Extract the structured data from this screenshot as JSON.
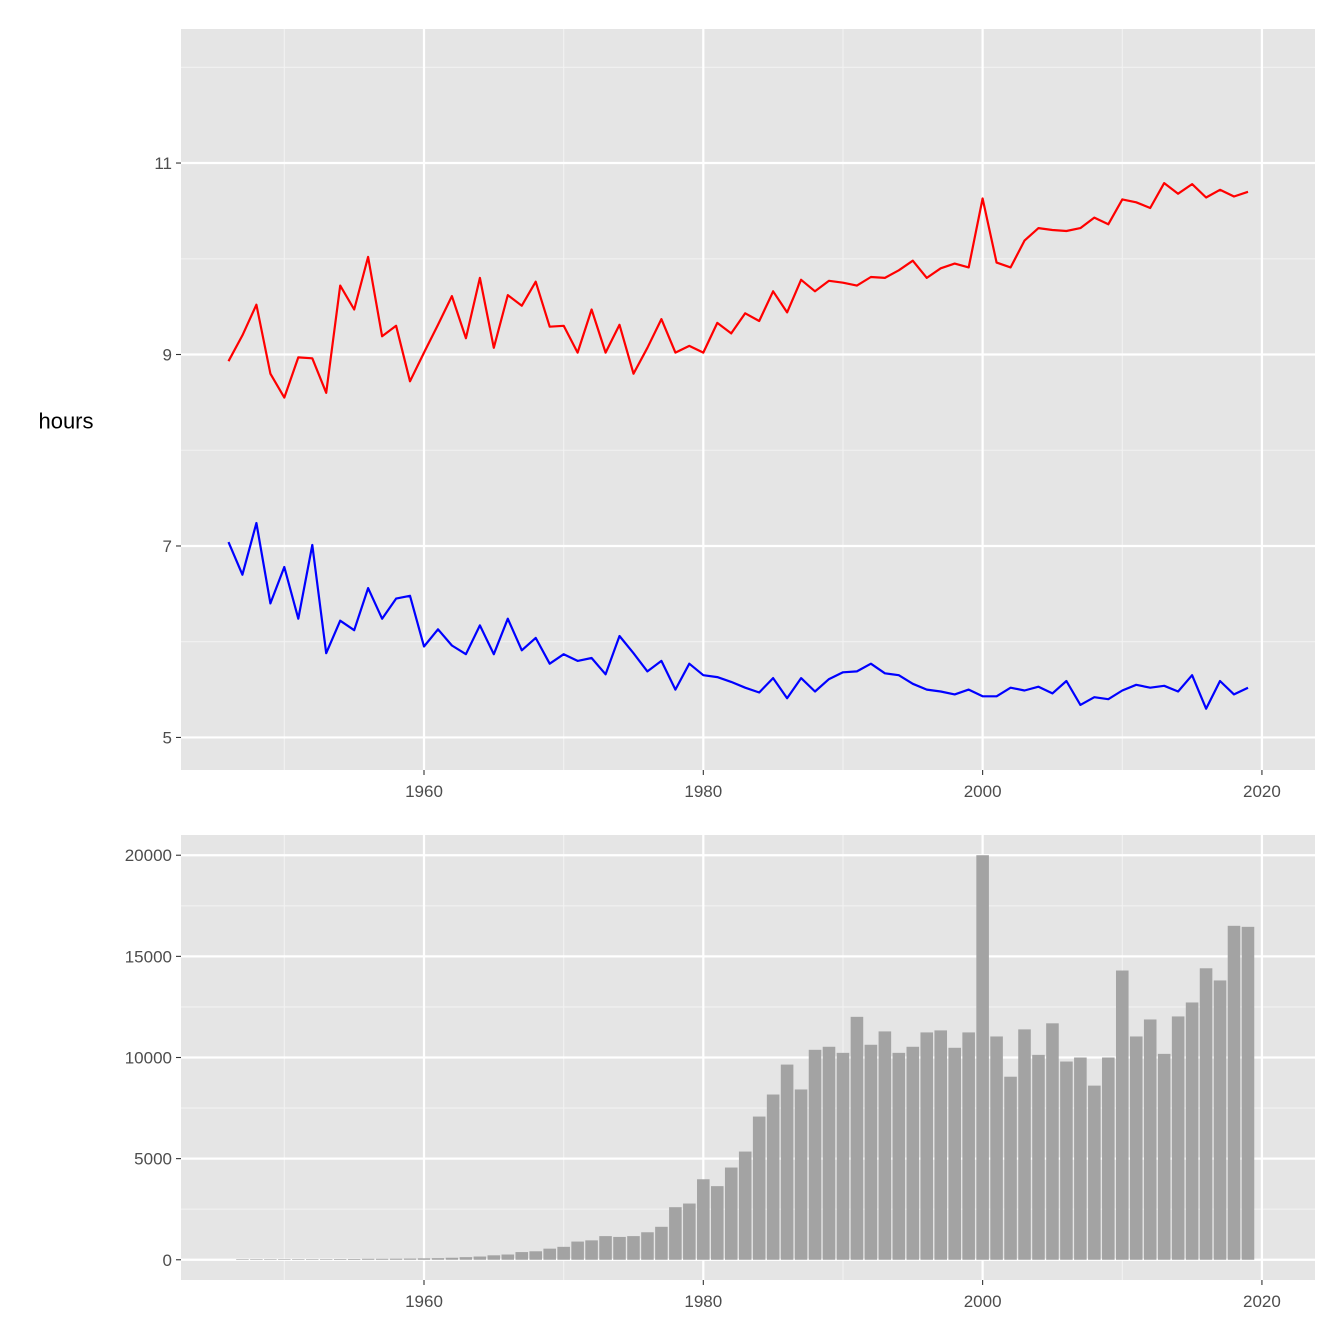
{
  "colors": {
    "panel_bg": "#e5e5e5",
    "grid_major": "#ffffff",
    "grid_minor": "#f2f2f2",
    "tick": "#333333",
    "tick_label": "#4d4d4d",
    "red_series": "#ff0000",
    "blue_series": "#0000ff",
    "bar_fill": "#a3a3a3"
  },
  "chart_data": [
    {
      "type": "line",
      "title": "",
      "xlabel": "",
      "ylabel": "hours",
      "xlim": [
        1942.6,
        2023.8
      ],
      "ylim": [
        4.66,
        12.4
      ],
      "x_ticks": [
        1960,
        1980,
        2000,
        2020
      ],
      "x_tick_labels": [
        "1960",
        "1980",
        "2000",
        "2020"
      ],
      "y_ticks": [
        5,
        7,
        9,
        11
      ],
      "y_tick_labels": [
        "5",
        "7",
        "9",
        "11"
      ],
      "y_minor": [
        6,
        8,
        10,
        12
      ],
      "grid": true,
      "legend": null,
      "x": [
        1946,
        1947,
        1948,
        1949,
        1950,
        1951,
        1952,
        1953,
        1954,
        1955,
        1956,
        1957,
        1958,
        1959,
        1960,
        1961,
        1962,
        1963,
        1964,
        1965,
        1966,
        1967,
        1968,
        1969,
        1970,
        1971,
        1972,
        1973,
        1974,
        1975,
        1976,
        1977,
        1978,
        1979,
        1980,
        1981,
        1982,
        1983,
        1984,
        1985,
        1986,
        1987,
        1988,
        1989,
        1990,
        1991,
        1992,
        1993,
        1994,
        1995,
        1996,
        1997,
        1998,
        1999,
        2000,
        2001,
        2002,
        2003,
        2004,
        2005,
        2006,
        2007,
        2008,
        2009,
        2010,
        2011,
        2012,
        2013,
        2014,
        2015,
        2016,
        2017,
        2018,
        2019
      ],
      "series": [
        {
          "name": "red",
          "color": "#ff0000",
          "values": [
            8.93,
            9.2,
            9.52,
            8.8,
            8.55,
            8.97,
            8.96,
            8.6,
            9.72,
            9.47,
            10.02,
            9.19,
            9.3,
            8.72,
            9.02,
            9.31,
            9.61,
            9.17,
            9.8,
            9.07,
            9.62,
            9.51,
            9.76,
            9.29,
            9.3,
            9.02,
            9.47,
            9.02,
            9.31,
            8.8,
            9.07,
            9.37,
            9.02,
            9.09,
            9.02,
            9.33,
            9.22,
            9.43,
            9.35,
            9.66,
            9.44,
            9.78,
            9.66,
            9.77,
            9.75,
            9.72,
            9.81,
            9.8,
            9.88,
            9.98,
            9.8,
            9.9,
            9.95,
            9.91,
            10.63,
            9.96,
            9.91,
            10.19,
            10.32,
            10.3,
            10.29,
            10.32,
            10.43,
            10.36,
            10.62,
            10.59,
            10.53,
            10.79,
            10.68,
            10.78,
            10.64,
            10.72,
            10.65,
            10.7
          ]
        },
        {
          "name": "blue",
          "color": "#0000ff",
          "values": [
            7.04,
            6.7,
            7.24,
            6.4,
            6.78,
            6.24,
            7.01,
            5.88,
            6.22,
            6.12,
            6.56,
            6.24,
            6.45,
            6.48,
            5.95,
            6.13,
            5.96,
            5.87,
            6.17,
            5.87,
            6.24,
            5.91,
            6.04,
            5.77,
            5.87,
            5.8,
            5.83,
            5.66,
            6.06,
            5.88,
            5.69,
            5.8,
            5.5,
            5.77,
            5.65,
            5.63,
            5.58,
            5.52,
            5.47,
            5.62,
            5.41,
            5.62,
            5.48,
            5.61,
            5.68,
            5.69,
            5.77,
            5.67,
            5.65,
            5.56,
            5.5,
            5.48,
            5.45,
            5.5,
            5.43,
            5.43,
            5.52,
            5.49,
            5.53,
            5.46,
            5.59,
            5.34,
            5.42,
            5.4,
            5.49,
            5.55,
            5.52,
            5.54,
            5.48,
            5.65,
            5.3,
            5.59,
            5.45,
            5.52
          ]
        }
      ]
    },
    {
      "type": "bar",
      "title": "",
      "xlabel": "",
      "ylabel": "",
      "xlim": [
        1942.6,
        2023.8
      ],
      "ylim": [
        -1000,
        21000
      ],
      "x_ticks": [
        1960,
        1980,
        2000,
        2020
      ],
      "x_tick_labels": [
        "1960",
        "1980",
        "2000",
        "2020"
      ],
      "y_ticks": [
        0,
        5000,
        10000,
        15000,
        20000
      ],
      "y_tick_labels": [
        "0",
        "5000",
        "10000",
        "15000",
        "20000"
      ],
      "y_minor": [
        2500,
        7500,
        12500,
        17500
      ],
      "grid": true,
      "legend": null,
      "categories": [
        1947,
        1948,
        1949,
        1950,
        1951,
        1952,
        1953,
        1954,
        1955,
        1956,
        1957,
        1958,
        1959,
        1960,
        1961,
        1962,
        1963,
        1964,
        1965,
        1966,
        1967,
        1968,
        1969,
        1970,
        1971,
        1972,
        1973,
        1974,
        1975,
        1976,
        1977,
        1978,
        1979,
        1980,
        1981,
        1982,
        1983,
        1984,
        1985,
        1986,
        1987,
        1988,
        1989,
        1990,
        1991,
        1992,
        1993,
        1994,
        1995,
        1996,
        1997,
        1998,
        1999,
        2000,
        2001,
        2002,
        2003,
        2004,
        2005,
        2006,
        2007,
        2008,
        2009,
        2010,
        2011,
        2012,
        2013,
        2014,
        2015,
        2016,
        2017,
        2018,
        2019
      ],
      "values": [
        20,
        25,
        25,
        25,
        30,
        30,
        30,
        35,
        40,
        50,
        50,
        55,
        60,
        70,
        80,
        100,
        130,
        160,
        220,
        260,
        380,
        420,
        550,
        640,
        900,
        960,
        1170,
        1130,
        1170,
        1360,
        1630,
        2600,
        2780,
        3980,
        3640,
        4560,
        5350,
        7080,
        8170,
        9650,
        8420,
        10380,
        10530,
        10230,
        12010,
        10630,
        11290,
        10230,
        10530,
        11240,
        11340,
        10480,
        11240,
        20000,
        11040,
        9050,
        11390,
        10130,
        11690,
        9800,
        10000,
        8610,
        10000,
        14300,
        11040,
        11880,
        10180,
        12030,
        12720,
        14410,
        13810,
        16510,
        16460
      ],
      "color": "#a3a3a3"
    }
  ]
}
